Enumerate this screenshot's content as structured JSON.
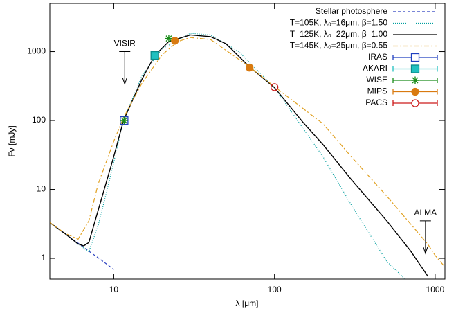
{
  "chart_data": {
    "type": "line",
    "x_label": "λ [μm]",
    "y_label": "Fν [mJy]",
    "x_log": true,
    "y_log": true,
    "xlim": [
      4,
      1150
    ],
    "ylim": [
      0.5,
      5000
    ],
    "xticks": [
      10,
      100,
      1000
    ],
    "yticks": [
      1,
      10,
      100,
      1000
    ],
    "legend": "top-right",
    "series": [
      {
        "name": "Stellar photosphere",
        "color": "#2a3fbf",
        "style": "dashed",
        "x": [
          4,
          5,
          6,
          7,
          8,
          9,
          10
        ],
        "values": [
          3.3,
          2.26,
          1.66,
          1.27,
          1.02,
          0.83,
          0.69
        ]
      },
      {
        "name": "T=105K, λ₀=16μm, β=1.50",
        "color": "#009e9e",
        "style": "dotted",
        "x": [
          4,
          5,
          6,
          7,
          8,
          9,
          10,
          11.5,
          15,
          20,
          30,
          40,
          60,
          100,
          200,
          300,
          500,
          650
        ],
        "values": [
          3.3,
          2.26,
          1.6,
          1.25,
          3,
          9,
          25,
          100,
          450,
          1100,
          1850,
          1750,
          1000,
          300,
          30,
          6,
          0.9,
          0.5
        ]
      },
      {
        "name": "T=125K, λ₀=22μm, β=1.00",
        "color": "#000000",
        "style": "solid",
        "x": [
          4,
          5,
          6,
          6.5,
          7,
          8,
          10,
          11.5,
          15,
          18,
          22,
          30,
          40,
          50,
          70,
          100,
          150,
          200,
          300,
          500,
          700,
          900
        ],
        "values": [
          3.3,
          2.26,
          1.62,
          1.52,
          1.7,
          5,
          30,
          100,
          400,
          880,
          1400,
          1750,
          1650,
          1300,
          600,
          300,
          95,
          45,
          14,
          3.5,
          1.3,
          0.55
        ]
      },
      {
        "name": "T=145K, λ₀=25μm, β=0.55",
        "color": "#e0a020",
        "style": "dashdot",
        "x": [
          4,
          5,
          6,
          7,
          8,
          10,
          11.5,
          15,
          20,
          25,
          30,
          40,
          70,
          100,
          200,
          300,
          500,
          700,
          900,
          1000,
          1150
        ],
        "values": [
          3.3,
          2.3,
          1.9,
          3.5,
          12,
          50,
          110,
          350,
          900,
          1400,
          1600,
          1500,
          600,
          310,
          90,
          30,
          8,
          3.2,
          1.6,
          1.1,
          0.75
        ]
      }
    ],
    "points": [
      {
        "name": "IRAS",
        "color": "#1f3fbf",
        "marker": "open-square",
        "x": [
          11.6
        ],
        "values": [
          100
        ]
      },
      {
        "name": "AKARI",
        "color": "#20c0c0",
        "marker": "filled-square",
        "x": [
          18
        ],
        "values": [
          880
        ]
      },
      {
        "name": "WISE",
        "color": "#1a8c1a",
        "marker": "star",
        "x": [
          11.6,
          22
        ],
        "values": [
          100,
          1550
        ]
      },
      {
        "name": "MIPS",
        "color": "#d97a10",
        "marker": "filled-circle",
        "x": [
          24,
          70
        ],
        "values": [
          1440,
          585
        ]
      },
      {
        "name": "PACS",
        "color": "#cc1a1a",
        "marker": "open-circle",
        "x": [
          100
        ],
        "values": [
          305
        ]
      }
    ],
    "upper_limits": [
      {
        "label": "VISIR",
        "x": 11.7,
        "value": 1000
      },
      {
        "label": "ALMA",
        "x": 870,
        "value": 3.5
      }
    ]
  }
}
